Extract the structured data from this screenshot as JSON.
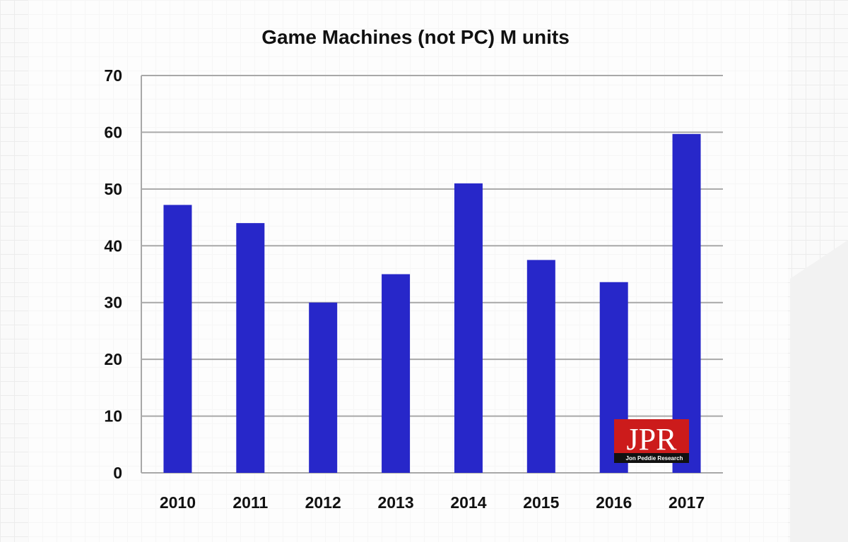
{
  "chart_data": {
    "type": "bar",
    "title": "Game Machines (not PC) M units",
    "xlabel": "",
    "ylabel": "",
    "categories": [
      "2010",
      "2011",
      "2012",
      "2013",
      "2014",
      "2015",
      "2016",
      "2017"
    ],
    "values": [
      47.2,
      44.0,
      30.0,
      35.0,
      51.0,
      37.5,
      33.6,
      59.7
    ],
    "ylim": [
      0,
      70
    ],
    "yticks": [
      0,
      10,
      20,
      30,
      40,
      50,
      60,
      70
    ],
    "grid": true,
    "bar_color": "#2727c9",
    "gridline_color": "#a8a8a8"
  },
  "logo": {
    "text": "JPR",
    "subtitle": "Jon Peddie Research",
    "color": "#cc1b1b"
  }
}
